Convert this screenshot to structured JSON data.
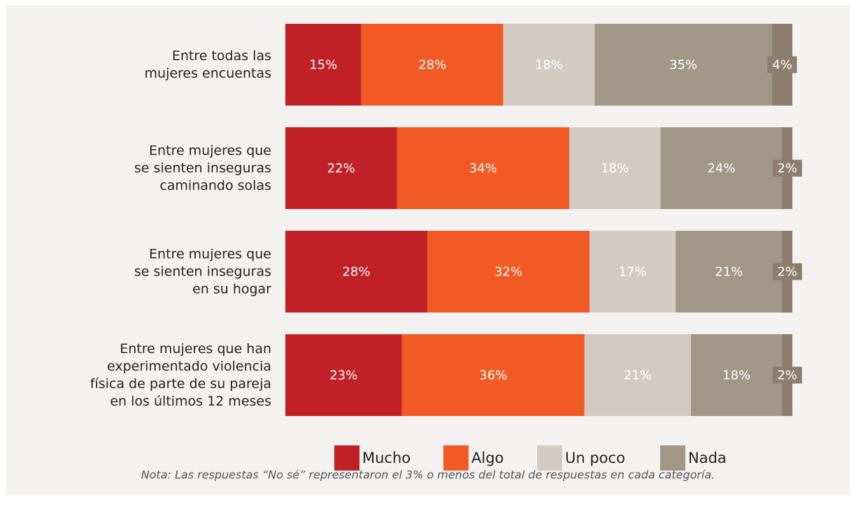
{
  "chart_data": {
    "type": "stacked_bar_horizontal",
    "categories": [
      "Entre todas las\nmujeres encuentas",
      "Entre mujeres que\nse sienten inseguras\ncaminando solas",
      "Entre mujeres que\nse sienten inseguras\nen su hogar",
      "Entre mujeres que han\nexperimentado violencia\nfísica de parte de su pareja\nen los últimos 12 meses"
    ],
    "series": [
      {
        "name": "Mucho",
        "color": "#c02126",
        "values": [
          15,
          22,
          28,
          23
        ],
        "value_labels": [
          "15%",
          "22%",
          "28%",
          "23%"
        ]
      },
      {
        "name": "Algo",
        "color": "#f15a24",
        "values": [
          28,
          34,
          32,
          36
        ],
        "value_labels": [
          "28%",
          "34%",
          "32%",
          "36%"
        ]
      },
      {
        "name": "Un poco",
        "color": "#d3cbc3",
        "values": [
          18,
          18,
          17,
          21
        ],
        "value_labels": [
          "18%",
          "18%",
          "17%",
          "21%"
        ]
      },
      {
        "name": "Nada",
        "color": "#a29686",
        "values": [
          35,
          24,
          21,
          18
        ],
        "value_labels": [
          "35%",
          "24%",
          "21%",
          "18%"
        ]
      },
      {
        "color": "#8c7d6c",
        "values": [
          4,
          2,
          2,
          2
        ],
        "value_labels": [
          "4%",
          "2%",
          "2%",
          "2%"
        ]
      }
    ],
    "xlim": [
      0,
      100
    ],
    "note": "Nota: Las respuestas “No sé” representaron el 3% o menos del total de respuestas en cada categoría."
  }
}
